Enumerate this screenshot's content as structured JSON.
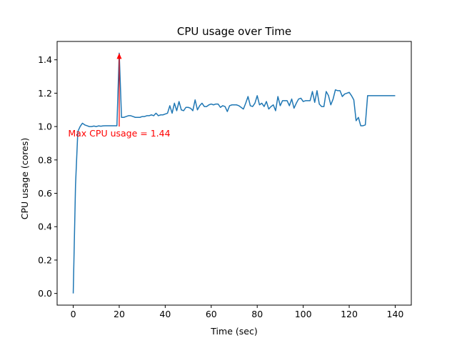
{
  "chart_data": {
    "type": "line",
    "title": "CPU usage over Time",
    "xlabel": "Time (sec)",
    "ylabel": "CPU usage (cores)",
    "xlim": [
      -7,
      147
    ],
    "ylim": [
      -0.07,
      1.51
    ],
    "xticks": [
      0,
      20,
      40,
      60,
      80,
      100,
      120,
      140
    ],
    "yticks": [
      0.0,
      0.2,
      0.4,
      0.6,
      0.8,
      1.0,
      1.2,
      1.4
    ],
    "ytick_labels": [
      "0.0",
      "0.2",
      "0.4",
      "0.6",
      "0.8",
      "1.0",
      "1.2",
      "1.4"
    ],
    "grid": false,
    "series": [
      {
        "color": "#1f77b4",
        "x": [
          0,
          1,
          2,
          3,
          4,
          5,
          6,
          7,
          8,
          9,
          10,
          11,
          12,
          13,
          14,
          15,
          16,
          17,
          18,
          19,
          20,
          21,
          22,
          23,
          24,
          25,
          26,
          27,
          28,
          29,
          30,
          31,
          32,
          33,
          34,
          35,
          36,
          37,
          38,
          39,
          40,
          41,
          42,
          43,
          44,
          45,
          46,
          47,
          48,
          49,
          50,
          51,
          52,
          53,
          54,
          55,
          56,
          57,
          58,
          59,
          60,
          61,
          62,
          63,
          64,
          65,
          66,
          67,
          68,
          69,
          70,
          71,
          72,
          73,
          74,
          75,
          76,
          77,
          78,
          79,
          80,
          81,
          82,
          83,
          84,
          85,
          86,
          87,
          88,
          89,
          90,
          91,
          92,
          93,
          94,
          95,
          96,
          97,
          98,
          99,
          100,
          101,
          102,
          103,
          104,
          105,
          106,
          107,
          108,
          109,
          110,
          111,
          112,
          113,
          114,
          115,
          116,
          117,
          118,
          119,
          120,
          121,
          122,
          123,
          124,
          125,
          126,
          127,
          128,
          129,
          130,
          131,
          132,
          133,
          134,
          135,
          136,
          137,
          138,
          139,
          140
        ],
        "y": [
          0.0,
          0.65,
          0.97,
          1.0,
          1.02,
          1.01,
          1.005,
          1.0,
          1.0,
          1.003,
          1.0,
          1.004,
          1.002,
          1.004,
          1.005,
          1.005,
          1.005,
          1.005,
          1.005,
          1.005,
          1.44,
          1.055,
          1.055,
          1.06,
          1.065,
          1.065,
          1.06,
          1.055,
          1.055,
          1.055,
          1.06,
          1.06,
          1.065,
          1.065,
          1.07,
          1.065,
          1.08,
          1.065,
          1.07,
          1.07,
          1.075,
          1.08,
          1.125,
          1.08,
          1.14,
          1.095,
          1.15,
          1.1,
          1.095,
          1.115,
          1.115,
          1.11,
          1.095,
          1.16,
          1.1,
          1.125,
          1.14,
          1.12,
          1.12,
          1.13,
          1.135,
          1.13,
          1.135,
          1.135,
          1.115,
          1.125,
          1.12,
          1.09,
          1.125,
          1.13,
          1.13,
          1.13,
          1.125,
          1.115,
          1.105,
          1.14,
          1.18,
          1.125,
          1.12,
          1.14,
          1.185,
          1.13,
          1.14,
          1.12,
          1.15,
          1.105,
          1.12,
          1.13,
          1.095,
          1.18,
          1.125,
          1.155,
          1.155,
          1.155,
          1.125,
          1.165,
          1.11,
          1.14,
          1.165,
          1.17,
          1.15,
          1.155,
          1.155,
          1.155,
          1.21,
          1.145,
          1.215,
          1.135,
          1.12,
          1.12,
          1.21,
          1.185,
          1.13,
          1.165,
          1.22,
          1.215,
          1.215,
          1.18,
          1.195,
          1.2,
          1.205,
          1.185,
          1.16,
          1.035,
          1.055,
          1.005,
          1.005,
          1.01,
          1.185,
          1.185,
          1.185,
          1.185,
          1.185,
          1.185,
          1.185,
          1.185,
          1.185,
          1.185,
          1.185,
          1.185,
          1.185
        ]
      }
    ],
    "annotations": [
      {
        "text": "Max CPU usage = 1.44",
        "color": "#ff0000",
        "point": [
          20,
          1.44
        ],
        "text_at": [
          20,
          1.0
        ]
      }
    ]
  }
}
